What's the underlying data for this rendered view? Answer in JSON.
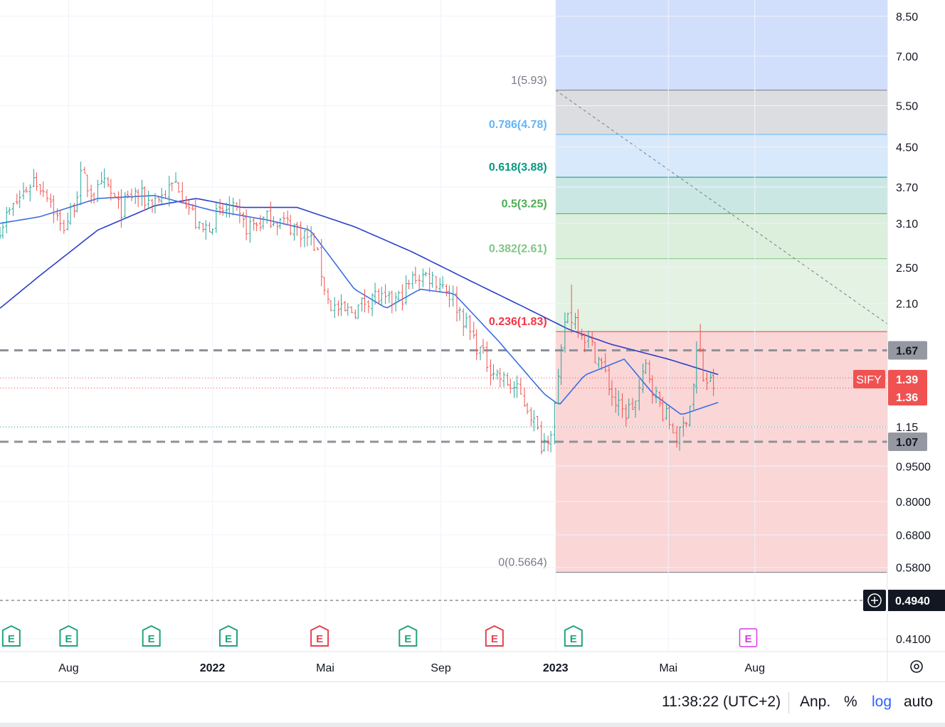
{
  "symbol": "SIFY",
  "colors": {
    "up": "#26a69a",
    "down": "#ef5350",
    "ma_long": "#2b3fc9",
    "ma_short": "#3a6fe6",
    "earnings_green": "#22a37b",
    "earnings_red": "#e2434f",
    "earnings_future": "#d63be5",
    "symbol_label": "#f05252",
    "level_label": "#9598a1"
  },
  "chart_data": {
    "type": "candlestick",
    "y_scale": "log",
    "y_range": [
      0.385,
      9.2
    ],
    "y_ticks": [
      {
        "value": 8.5,
        "label": "8.50"
      },
      {
        "value": 7.0,
        "label": "7.00"
      },
      {
        "value": 5.5,
        "label": "5.50"
      },
      {
        "value": 4.5,
        "label": "4.50"
      },
      {
        "value": 3.7,
        "label": "3.70"
      },
      {
        "value": 3.1,
        "label": "3.10"
      },
      {
        "value": 2.5,
        "label": "2.50"
      },
      {
        "value": 2.1,
        "label": "2.10"
      },
      {
        "value": 1.15,
        "label": "1.15"
      },
      {
        "value": 0.95,
        "label": "0.9500"
      },
      {
        "value": 0.8,
        "label": "0.8000"
      },
      {
        "value": 0.68,
        "label": "0.6800"
      },
      {
        "value": 0.58,
        "label": "0.5800"
      },
      {
        "value": 0.41,
        "label": "0.4100"
      }
    ],
    "x_range": [
      "2021-05-20",
      "2023-12-20"
    ],
    "x_ticks": [
      {
        "date": "2021-08-01",
        "label": "Aug",
        "bold": false
      },
      {
        "date": "2022-01-01",
        "label": "2022",
        "bold": true
      },
      {
        "date": "2022-05-01",
        "label": "Mai",
        "bold": false
      },
      {
        "date": "2022-09-01",
        "label": "Sep",
        "bold": false
      },
      {
        "date": "2023-01-01",
        "label": "2023",
        "bold": true
      },
      {
        "date": "2023-05-01",
        "label": "Mai",
        "bold": false
      },
      {
        "date": "2023-08-01",
        "label": "Aug",
        "bold": false
      }
    ],
    "price_path": [
      [
        "2021-05-20",
        3.05
      ],
      [
        "2021-06-10",
        3.5
      ],
      [
        "2021-06-25",
        3.85
      ],
      [
        "2021-07-10",
        3.6
      ],
      [
        "2021-07-25",
        3.0
      ],
      [
        "2021-08-05",
        3.3
      ],
      [
        "2021-08-15",
        3.9
      ],
      [
        "2021-08-28",
        3.55
      ],
      [
        "2021-09-10",
        3.75
      ],
      [
        "2021-09-25",
        3.3
      ],
      [
        "2021-10-10",
        3.6
      ],
      [
        "2021-10-25",
        3.45
      ],
      [
        "2021-11-10",
        3.55
      ],
      [
        "2021-11-25",
        3.8
      ],
      [
        "2021-12-05",
        3.45
      ],
      [
        "2021-12-20",
        2.95
      ],
      [
        "2022-01-05",
        3.2
      ],
      [
        "2022-01-20",
        3.35
      ],
      [
        "2022-02-05",
        3.05
      ],
      [
        "2022-02-20",
        3.1
      ],
      [
        "2022-03-05",
        3.2
      ],
      [
        "2022-03-20",
        3.1
      ],
      [
        "2022-04-05",
        3.0
      ],
      [
        "2022-04-20",
        2.8
      ],
      [
        "2022-05-05",
        2.1
      ],
      [
        "2022-05-20",
        2.0
      ],
      [
        "2022-06-05",
        2.05
      ],
      [
        "2022-06-20",
        2.2
      ],
      [
        "2022-07-05",
        2.1
      ],
      [
        "2022-07-20",
        2.15
      ],
      [
        "2022-08-05",
        2.4
      ],
      [
        "2022-08-20",
        2.4
      ],
      [
        "2022-09-05",
        2.3
      ],
      [
        "2022-09-20",
        2.05
      ],
      [
        "2022-10-05",
        1.78
      ],
      [
        "2022-10-20",
        1.58
      ],
      [
        "2022-11-05",
        1.45
      ],
      [
        "2022-11-20",
        1.38
      ],
      [
        "2022-12-05",
        1.25
      ],
      [
        "2022-12-18",
        1.05
      ],
      [
        "2022-12-28",
        1.15
      ],
      [
        "2023-01-05",
        1.45
      ],
      [
        "2023-01-12",
        2.0
      ],
      [
        "2023-01-22",
        1.95
      ],
      [
        "2023-02-05",
        1.75
      ],
      [
        "2023-02-20",
        1.55
      ],
      [
        "2023-03-05",
        1.3
      ],
      [
        "2023-03-15",
        1.22
      ],
      [
        "2023-03-28",
        1.3
      ],
      [
        "2023-04-08",
        1.55
      ],
      [
        "2023-04-20",
        1.3
      ],
      [
        "2023-05-05",
        1.15
      ],
      [
        "2023-05-12",
        1.08
      ],
      [
        "2023-05-20",
        1.2
      ],
      [
        "2023-05-27",
        1.35
      ],
      [
        "2023-06-02",
        1.75
      ],
      [
        "2023-06-08",
        1.45
      ],
      [
        "2023-06-16",
        1.42
      ],
      [
        "2023-06-22",
        1.39
      ]
    ],
    "spikes": [
      {
        "date": "2023-01-18",
        "high": 2.3
      },
      {
        "date": "2023-06-03",
        "high": 1.9
      },
      {
        "date": "2022-12-20",
        "low": 1.02
      },
      {
        "date": "2023-05-10",
        "low": 1.04
      }
    ],
    "ma_long_path": [
      [
        "2021-05-20",
        2.05
      ],
      [
        "2021-07-01",
        2.4
      ],
      [
        "2021-09-01",
        3.0
      ],
      [
        "2021-11-01",
        3.38
      ],
      [
        "2021-12-15",
        3.5
      ],
      [
        "2022-02-01",
        3.35
      ],
      [
        "2022-04-01",
        3.35
      ],
      [
        "2022-06-01",
        3.05
      ],
      [
        "2022-08-01",
        2.7
      ],
      [
        "2022-10-01",
        2.35
      ],
      [
        "2022-12-01",
        2.05
      ],
      [
        "2023-01-15",
        1.85
      ],
      [
        "2023-03-01",
        1.72
      ],
      [
        "2023-05-01",
        1.6
      ],
      [
        "2023-06-25",
        1.48
      ]
    ],
    "ma_short_path": [
      [
        "2021-05-20",
        3.1
      ],
      [
        "2021-07-01",
        3.2
      ],
      [
        "2021-09-01",
        3.5
      ],
      [
        "2021-11-01",
        3.55
      ],
      [
        "2022-01-01",
        3.3
      ],
      [
        "2022-03-01",
        3.15
      ],
      [
        "2022-04-15",
        3.0
      ],
      [
        "2022-06-01",
        2.25
      ],
      [
        "2022-07-05",
        2.05
      ],
      [
        "2022-08-10",
        2.25
      ],
      [
        "2022-09-15",
        2.2
      ],
      [
        "2022-11-01",
        1.75
      ],
      [
        "2022-12-20",
        1.35
      ],
      [
        "2023-01-05",
        1.28
      ],
      [
        "2023-02-01",
        1.48
      ],
      [
        "2023-03-15",
        1.6
      ],
      [
        "2023-04-15",
        1.35
      ],
      [
        "2023-05-15",
        1.22
      ],
      [
        "2023-06-25",
        1.3
      ]
    ],
    "fibonacci": {
      "start_date": "2023-01-01",
      "end_date": "2023-12-20",
      "trend_line": {
        "from": [
          "2023-01-01",
          5.93
        ],
        "to": [
          "2023-12-20",
          1.9
        ]
      },
      "levels": [
        {
          "ratio": "1",
          "price": 5.93,
          "label": "1(5.93)",
          "color": "#787b86",
          "fill": "#dcdde0"
        },
        {
          "ratio": "0.786",
          "price": 4.78,
          "label": "0.786(4.78)",
          "color": "#64b5f6",
          "fill": "#d8e9fb"
        },
        {
          "ratio": "0.618",
          "price": 3.88,
          "label": "0.618(3.88)",
          "color": "#089981",
          "fill": "#cbe7e3"
        },
        {
          "ratio": "0.5",
          "price": 3.25,
          "label": "0.5(3.25)",
          "color": "#4caf50",
          "fill": "#dcefdd"
        },
        {
          "ratio": "0.382",
          "price": 2.61,
          "label": "0.382(2.61)",
          "color": "#81c784",
          "fill": "#e3f2e3"
        },
        {
          "ratio": "0.236",
          "price": 1.83,
          "label": "0.236(1.83)",
          "color": "#f23645",
          "fill": "#fad6d6"
        },
        {
          "ratio": "0",
          "price": 0.5664,
          "label": "0(0.5664)",
          "color": "#787b86",
          "fill": null
        }
      ],
      "top_fill": "#d2dffc"
    },
    "horizontal_lines": [
      {
        "price": 1.67,
        "label": "1.67",
        "style": "dashed",
        "color": "#8f9299"
      },
      {
        "price": 1.07,
        "label": "1.07",
        "style": "dashed",
        "color": "#8f9299"
      }
    ],
    "dotted_lines": [
      {
        "price": 1.46,
        "color": "#ef5350"
      },
      {
        "price": 1.39,
        "color": "#ef5350"
      },
      {
        "price": 1.15,
        "color": "#26a69a"
      }
    ],
    "crosshair": {
      "price": 0.494,
      "label": "0.4940"
    },
    "price_labels": {
      "last": "1.39",
      "previous": "1.36"
    },
    "earnings": [
      {
        "date": "2021-06-01",
        "type": "green",
        "label": "E"
      },
      {
        "date": "2021-08-01",
        "type": "green",
        "label": "E"
      },
      {
        "date": "2021-10-28",
        "type": "green",
        "label": "E"
      },
      {
        "date": "2022-01-18",
        "type": "green",
        "label": "E"
      },
      {
        "date": "2022-04-25",
        "type": "red",
        "label": "E"
      },
      {
        "date": "2022-07-28",
        "type": "green",
        "label": "E"
      },
      {
        "date": "2022-10-28",
        "type": "red",
        "label": "E"
      },
      {
        "date": "2023-01-20",
        "type": "green",
        "label": "E"
      },
      {
        "date": "2023-07-25",
        "type": "future",
        "label": "E"
      }
    ]
  },
  "footer": {
    "time": "11:38:22 (UTC+2)",
    "adjust": "Anp.",
    "percent": "%",
    "log": "log",
    "auto": "auto"
  }
}
